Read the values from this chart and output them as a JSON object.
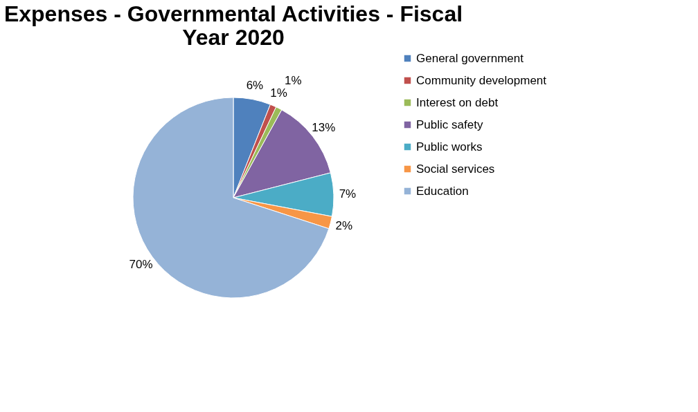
{
  "chart_data": {
    "type": "pie",
    "title": [
      "Expenses - Governmental Activities - Fiscal",
      "Year 2020"
    ],
    "categories": [
      "General government",
      "Community development",
      "Interest on debt",
      "Public safety",
      "Public works",
      "Social services",
      "Education"
    ],
    "values": [
      6,
      1,
      1,
      13,
      7,
      2,
      70
    ],
    "colors": [
      "#4f81bd",
      "#c0504d",
      "#9bbb59",
      "#8064a2",
      "#4bacc6",
      "#f79646",
      "#95b3d7"
    ],
    "value_labels": [
      "6%",
      "1%",
      "1%",
      "13%",
      "7%",
      "2%",
      "70%"
    ],
    "legend": "right"
  }
}
